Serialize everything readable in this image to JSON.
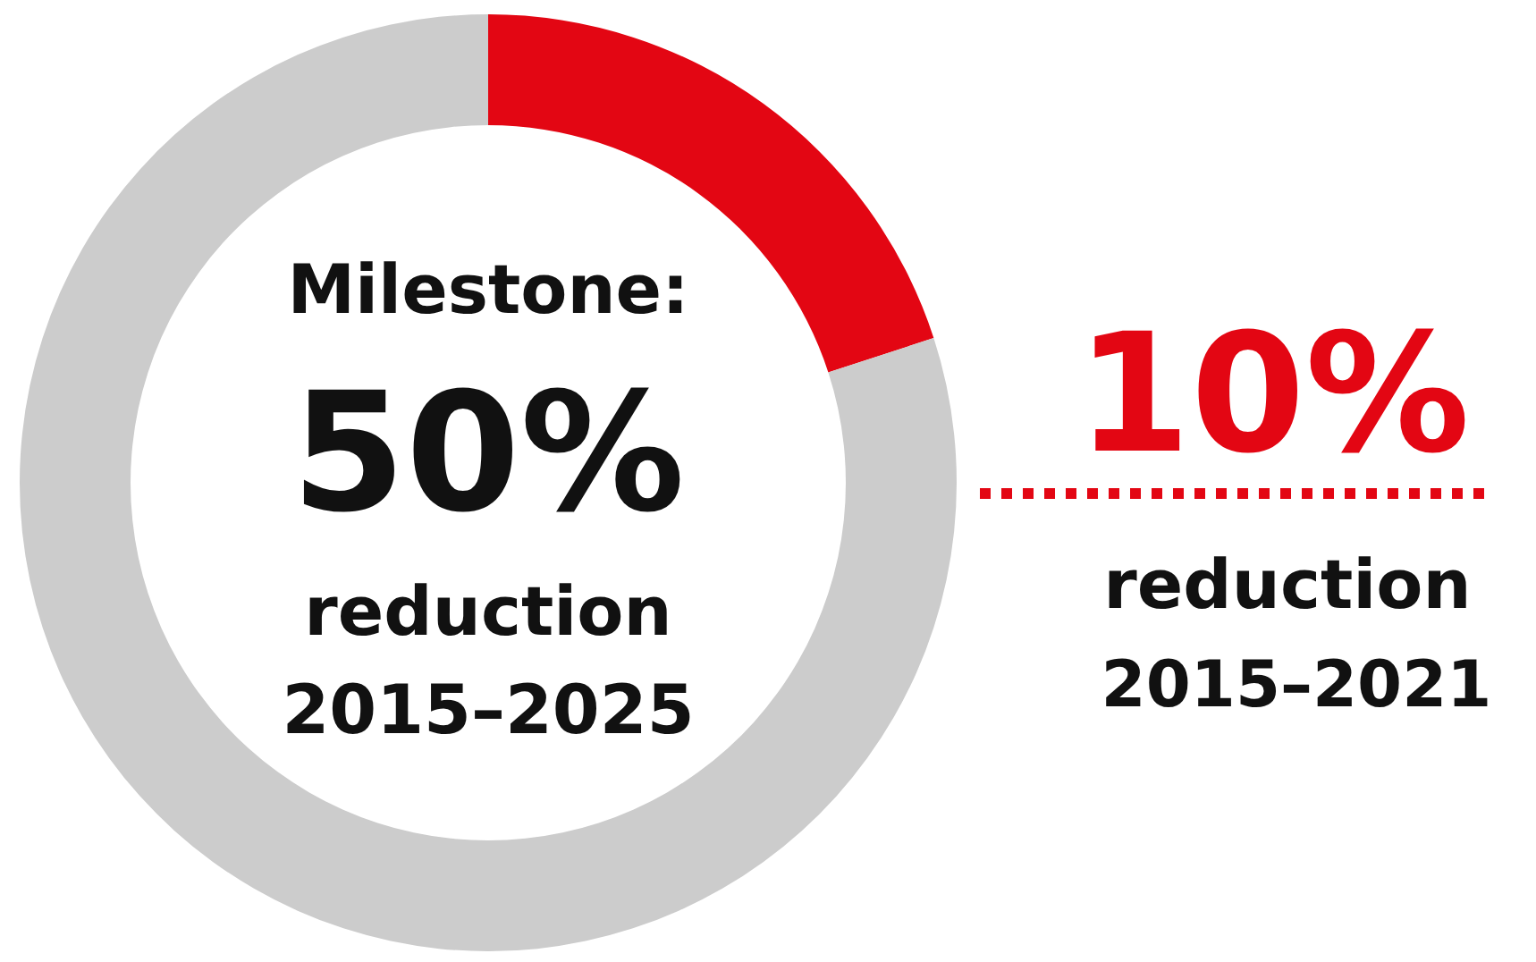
{
  "chart_data": {
    "type": "donut",
    "categories": [
      null,
      null
    ],
    "values": [
      20,
      80
    ],
    "colors": [
      "#e30613",
      "#cccccc"
    ],
    "annotations": [
      "Milestone:",
      "50%",
      "reduction",
      "2015–2025",
      "10%",
      "reduction",
      "2015–2021"
    ]
  }
}
